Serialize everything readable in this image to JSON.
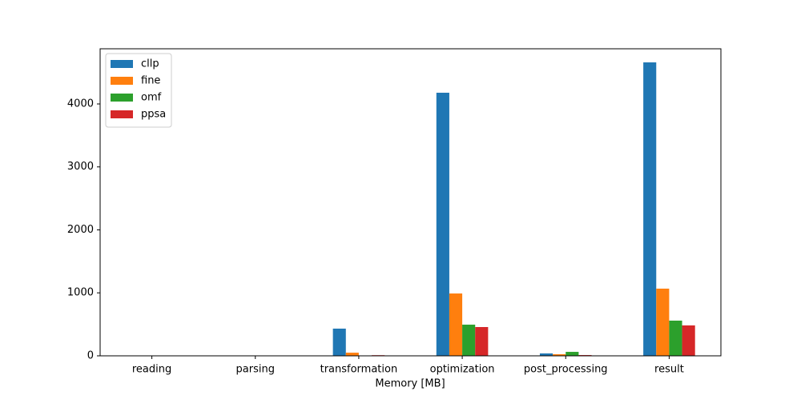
{
  "chart_data": {
    "type": "bar",
    "xlabel": "Memory [MB]",
    "categories": [
      "reading",
      "parsing",
      "transformation",
      "optimization",
      "post_processing",
      "result"
    ],
    "series": [
      {
        "name": "cllp",
        "color": "#1f77b4",
        "values": [
          0,
          0,
          432,
          4178,
          38,
          4660
        ]
      },
      {
        "name": "fine",
        "color": "#ff7f0e",
        "values": [
          0,
          0,
          50,
          990,
          25,
          1067
        ]
      },
      {
        "name": "omf",
        "color": "#2ca02c",
        "values": [
          0,
          0,
          0,
          495,
          63,
          559
        ]
      },
      {
        "name": "ppsa",
        "color": "#d62728",
        "values": [
          0,
          0,
          10,
          457,
          12,
          483
        ]
      }
    ],
    "ylim": [
      0,
      4876
    ],
    "yticks": [
      0,
      1000,
      2000,
      3000,
      4000
    ],
    "legend": "upper left",
    "grid": false
  }
}
